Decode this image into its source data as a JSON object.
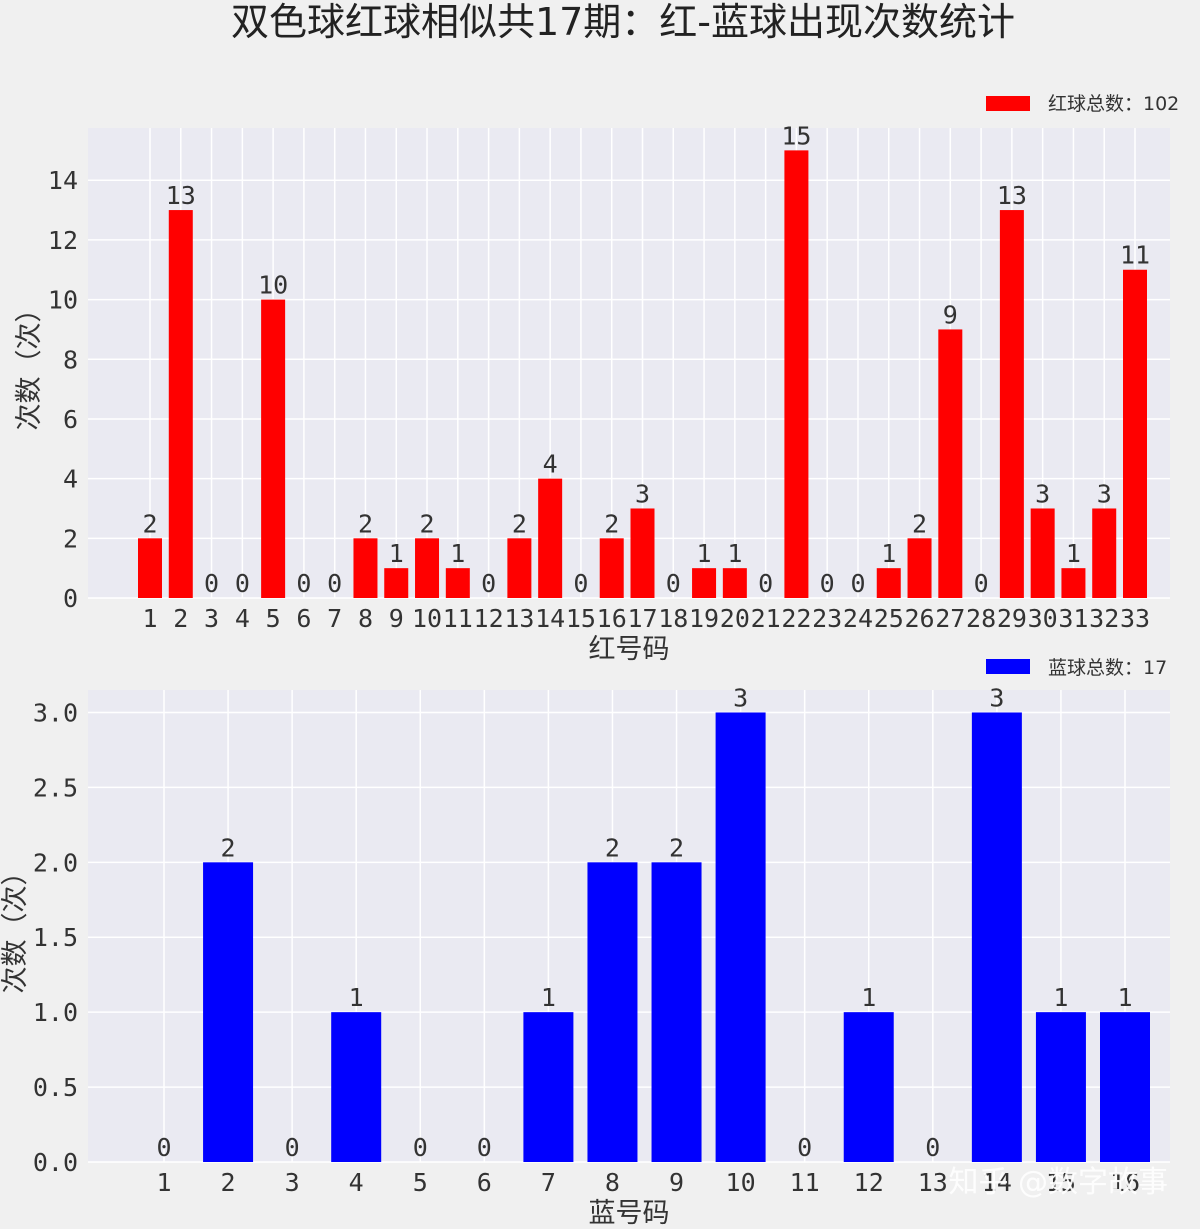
{
  "title": "双色球红球相似共17期：红-蓝球出现次数统计",
  "watermark": "知乎 @数字故事",
  "colors": {
    "figure_bg": "#f0f0f0",
    "axes_bg": "#eaeaf2",
    "grid": "#ffffff",
    "red": "#ff0000",
    "red_label": "#dd0000",
    "blue": "#0000ff",
    "blue_label": "#0000bb"
  },
  "chart_data": [
    {
      "type": "bar",
      "title": "",
      "xlabel": "红号码",
      "ylabel": "次数（次）",
      "ylim": [
        0,
        15.75
      ],
      "yticks": [
        0,
        2,
        4,
        6,
        8,
        10,
        12,
        14
      ],
      "ytick_labels": [
        "0",
        "2",
        "4",
        "6",
        "8",
        "10",
        "12",
        "14"
      ],
      "grid": true,
      "legend_position": "top-right",
      "categories": [
        "1",
        "2",
        "3",
        "4",
        "5",
        "6",
        "7",
        "8",
        "9",
        "10",
        "11",
        "12",
        "13",
        "14",
        "15",
        "16",
        "17",
        "18",
        "19",
        "20",
        "21",
        "22",
        "23",
        "24",
        "25",
        "26",
        "27",
        "28",
        "29",
        "30",
        "31",
        "32",
        "33"
      ],
      "series": [
        {
          "name": "红球总数：102",
          "color": "#ff0000",
          "values": [
            2,
            13,
            0,
            0,
            10,
            0,
            0,
            2,
            1,
            2,
            1,
            0,
            2,
            4,
            0,
            2,
            3,
            0,
            1,
            1,
            0,
            15,
            0,
            0,
            1,
            2,
            9,
            0,
            13,
            3,
            1,
            3,
            11
          ]
        }
      ]
    },
    {
      "type": "bar",
      "title": "",
      "xlabel": "蓝号码",
      "ylabel": "次数（次）",
      "ylim": [
        0,
        3.15
      ],
      "yticks": [
        0,
        0.5,
        1,
        1.5,
        2,
        2.5,
        3
      ],
      "ytick_labels": [
        "0.0",
        "0.5",
        "1.0",
        "1.5",
        "2.0",
        "2.5",
        "3.0"
      ],
      "grid": true,
      "legend_position": "top-right",
      "categories": [
        "1",
        "2",
        "3",
        "4",
        "5",
        "6",
        "7",
        "8",
        "9",
        "10",
        "11",
        "12",
        "13",
        "14",
        "15",
        "16"
      ],
      "series": [
        {
          "name": "蓝球总数：17",
          "color": "#0000ff",
          "values": [
            0,
            2,
            0,
            1,
            0,
            0,
            1,
            2,
            2,
            3,
            0,
            1,
            0,
            3,
            1,
            1
          ]
        }
      ]
    }
  ]
}
